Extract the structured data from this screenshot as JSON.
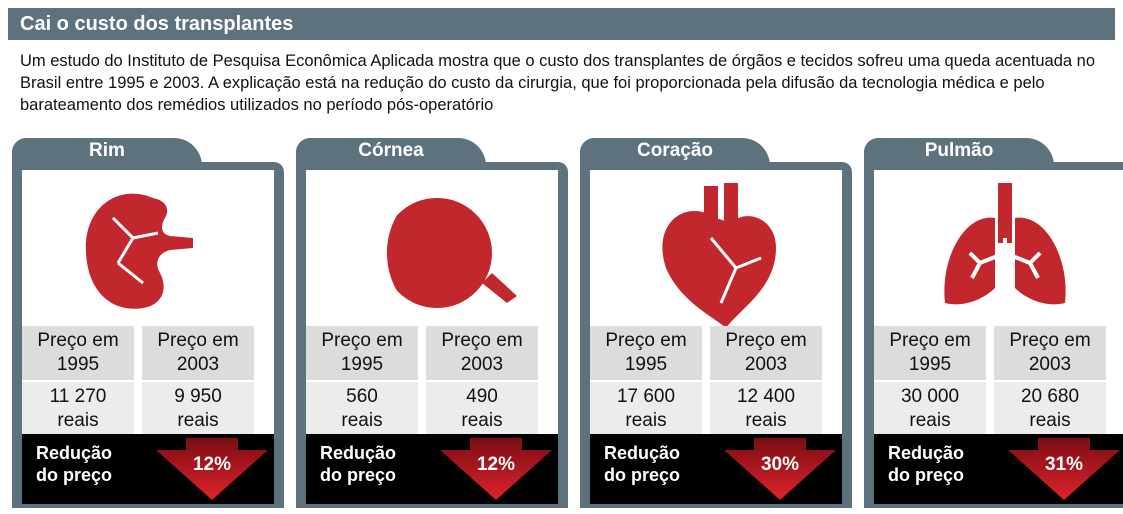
{
  "header": {
    "title": "Cai o custo dos transplantes",
    "intro": "Um estudo do Instituto de Pesquisa Econômica Aplicada mostra que o custo dos transplantes de órgãos e tecidos sofreu uma queda acentuada no Brasil entre 1995 e 2003. A explicação está na redução do custo da cirurgia, que foi proporcionada pela difusão da tecnologia médica e pelo barateamento dos remédios utilizados no período pós-operatório"
  },
  "organs": [
    {
      "name": "Rim",
      "header_1995": "Preço em 1995",
      "header_2003": "Preço em 2003",
      "price_1995": "11 270 reais",
      "price_2003": "9 950 reais",
      "reduction_label": "Redução do preço",
      "reduction": "12%"
    },
    {
      "name": "Córnea",
      "header_1995": "Preço em 1995",
      "header_2003": "Preço em 2003",
      "price_1995": "560 reais",
      "price_2003": "490 reais",
      "reduction_label": "Redução do preço",
      "reduction": "12%"
    },
    {
      "name": "Coração",
      "header_1995": "Preço em 1995",
      "header_2003": "Preço em 2003",
      "price_1995": "17 600 reais",
      "price_2003": "12 400 reais",
      "reduction_label": "Redução do preço",
      "reduction": "30%"
    },
    {
      "name": "Pulmão",
      "header_1995": "Preço em 1995",
      "header_2003": "Preço em 2003",
      "price_1995": "30 000 reais",
      "price_2003": "20 680 reais",
      "reduction_label": "Redução do preço",
      "reduction": "31%"
    }
  ]
}
